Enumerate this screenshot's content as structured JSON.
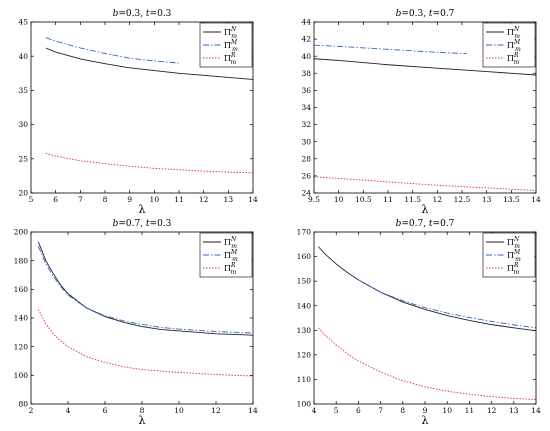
{
  "chart_data": [
    {
      "type": "line",
      "title_parts": [
        {
          "t": "b",
          "italic": true
        },
        {
          "t": "=0.3, ",
          "italic": false
        },
        {
          "t": "t",
          "italic": true
        },
        {
          "t": "=0.3",
          "italic": false
        }
      ],
      "xlabel": "λ",
      "xlim": [
        5,
        14
      ],
      "ylim": [
        20,
        45
      ],
      "xticks": [
        "5",
        "6",
        "7",
        "8",
        "9",
        "10",
        "11",
        "12",
        "13",
        "14"
      ],
      "yticks": [
        "20",
        "25",
        "30",
        "35",
        "40",
        "45"
      ],
      "series": [
        {
          "name": "Π",
          "sup": "N",
          "sub": "m",
          "color": "#222222",
          "dash": "",
          "x": [
            5.6,
            6,
            7,
            8,
            9,
            10,
            11,
            12,
            13,
            14
          ],
          "y": [
            41.2,
            40.6,
            39.6,
            38.9,
            38.3,
            37.9,
            37.5,
            37.2,
            36.9,
            36.6
          ]
        },
        {
          "name": "Π",
          "sup": "M",
          "sub": "m",
          "color": "#3366cc",
          "dash": "6,2,1.5,2",
          "x": [
            5.6,
            6,
            7,
            8,
            9,
            10,
            11
          ],
          "y": [
            42.7,
            42.2,
            41.2,
            40.4,
            39.7,
            39.3,
            39.0
          ]
        },
        {
          "name": "Π",
          "sup": "R",
          "sub": "m",
          "color": "#e03030",
          "dash": "1.5,1.5",
          "x": [
            5.6,
            6,
            7,
            8,
            9,
            10,
            11,
            12,
            13,
            14
          ],
          "y": [
            25.8,
            25.4,
            24.7,
            24.3,
            23.9,
            23.6,
            23.4,
            23.2,
            23.05,
            22.95
          ]
        }
      ]
    },
    {
      "type": "line",
      "title_parts": [
        {
          "t": "b",
          "italic": true
        },
        {
          "t": "=0.3, ",
          "italic": false
        },
        {
          "t": "t",
          "italic": true
        },
        {
          "t": "=0.7",
          "italic": false
        }
      ],
      "xlabel": "λ",
      "xlim": [
        9.5,
        14
      ],
      "ylim": [
        24,
        44
      ],
      "xticks": [
        "9.5",
        "10",
        "10.5",
        "11",
        "11.5",
        "12",
        "12.5",
        "13",
        "13.5",
        "14"
      ],
      "yticks": [
        "24",
        "26",
        "28",
        "30",
        "32",
        "34",
        "36",
        "38",
        "40",
        "42",
        "44"
      ],
      "series": [
        {
          "name": "Π",
          "sup": "N",
          "sub": "m",
          "color": "#222222",
          "dash": "",
          "x": [
            9.5,
            10,
            11,
            12,
            13,
            14
          ],
          "y": [
            39.7,
            39.5,
            39.0,
            38.6,
            38.2,
            37.8
          ]
        },
        {
          "name": "Π",
          "sup": "M",
          "sub": "m",
          "color": "#3366cc",
          "dash": "6,2,1.5,2",
          "x": [
            9.5,
            10,
            11,
            12,
            12.6
          ],
          "y": [
            41.3,
            41.15,
            40.8,
            40.45,
            40.3
          ]
        },
        {
          "name": "Π",
          "sup": "R",
          "sub": "m",
          "color": "#e03030",
          "dash": "1.5,1.5",
          "x": [
            9.5,
            10,
            11,
            12,
            13,
            14
          ],
          "y": [
            25.9,
            25.7,
            25.3,
            24.9,
            24.6,
            24.3
          ]
        }
      ]
    },
    {
      "type": "line",
      "title_parts": [
        {
          "t": "b",
          "italic": true
        },
        {
          "t": "=0.7, ",
          "italic": false
        },
        {
          "t": "t",
          "italic": true
        },
        {
          "t": "=0.3",
          "italic": false
        }
      ],
      "xlabel": "λ",
      "xlim": [
        2,
        14
      ],
      "ylim": [
        80,
        200
      ],
      "xticks": [
        "2",
        "4",
        "6",
        "8",
        "10",
        "12",
        "14"
      ],
      "yticks": [
        "80",
        "100",
        "120",
        "140",
        "160",
        "180",
        "200"
      ],
      "series": [
        {
          "name": "Π",
          "sup": "N",
          "sub": "m",
          "color": "#222222",
          "dash": "",
          "x": [
            2.4,
            2.8,
            3.2,
            3.6,
            4,
            5,
            6,
            7,
            8,
            9,
            10,
            11,
            12,
            13,
            14
          ],
          "y": [
            193,
            180,
            171,
            163,
            157,
            147,
            141,
            137,
            134,
            132,
            131,
            130,
            129,
            128.5,
            128
          ]
        },
        {
          "name": "Π",
          "sup": "M",
          "sub": "m",
          "color": "#3366cc",
          "dash": "6,2,1.5,2",
          "x": [
            2.4,
            2.8,
            3.2,
            3.6,
            4,
            5,
            6,
            7,
            8,
            9,
            10,
            11,
            12,
            13,
            14
          ],
          "y": [
            190,
            178,
            169,
            162,
            156,
            147,
            141.5,
            138,
            135.5,
            133.5,
            132.3,
            131.4,
            130.6,
            130,
            129.5
          ]
        },
        {
          "name": "Π",
          "sup": "R",
          "sub": "m",
          "color": "#e03030",
          "dash": "1.5,1.5",
          "x": [
            2.4,
            2.8,
            3.2,
            3.6,
            4,
            5,
            6,
            7,
            8,
            9,
            10,
            11,
            12,
            13,
            14
          ],
          "y": [
            146,
            136,
            129,
            124,
            120,
            113,
            109,
            106,
            104,
            103,
            102,
            101.3,
            100.6,
            100,
            99.5
          ]
        }
      ]
    },
    {
      "type": "line",
      "title_parts": [
        {
          "t": "b",
          "italic": true
        },
        {
          "t": "=0.7, ",
          "italic": false
        },
        {
          "t": "t",
          "italic": true
        },
        {
          "t": "=0.7",
          "italic": false
        }
      ],
      "xlabel": "λ",
      "xlim": [
        4,
        14
      ],
      "ylim": [
        100,
        170
      ],
      "xticks": [
        "4",
        "5",
        "6",
        "7",
        "8",
        "9",
        "10",
        "11",
        "12",
        "13",
        "14"
      ],
      "yticks": [
        "100",
        "110",
        "120",
        "130",
        "140",
        "150",
        "160",
        "170"
      ],
      "series": [
        {
          "name": "Π",
          "sup": "N",
          "sub": "m",
          "color": "#222222",
          "dash": "",
          "x": [
            4.2,
            4.5,
            5,
            5.5,
            6,
            7,
            8,
            9,
            10,
            11,
            12,
            13,
            14
          ],
          "y": [
            164,
            161,
            157,
            153.5,
            150.5,
            145.5,
            141.5,
            138.5,
            136,
            134,
            132.3,
            131,
            129.8
          ]
        },
        {
          "name": "Π",
          "sup": "M",
          "sub": "m",
          "color": "#3366cc",
          "dash": "6,2,1.5,2",
          "x": [
            6,
            7,
            8,
            9,
            10,
            11,
            12,
            13,
            14
          ],
          "y": [
            150.5,
            145.5,
            142,
            139.2,
            137,
            135.2,
            133.6,
            132.2,
            131
          ]
        },
        {
          "name": "Π",
          "sup": "R",
          "sub": "m",
          "color": "#e03030",
          "dash": "1.5,1.5",
          "x": [
            4.2,
            4.5,
            5,
            5.5,
            6,
            7,
            8,
            9,
            10,
            11,
            12,
            13,
            14
          ],
          "y": [
            131,
            128,
            124,
            120.5,
            117.5,
            113,
            109.5,
            107,
            105.2,
            104,
            103,
            102.3,
            101.8
          ]
        }
      ]
    }
  ]
}
